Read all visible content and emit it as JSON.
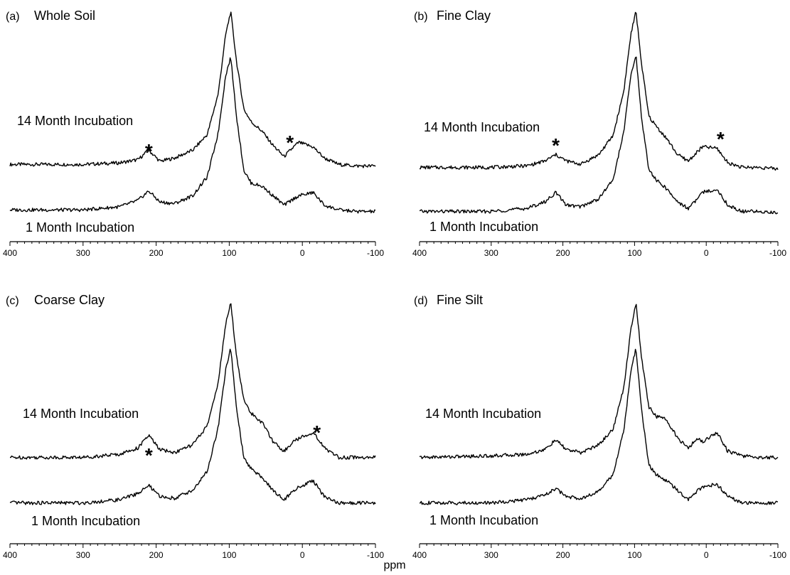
{
  "figure": {
    "xlabel": "ppm"
  },
  "chart_data": [
    {
      "type": "line",
      "panel": "(a)",
      "title": "Whole Soil",
      "xlabel": "ppm",
      "xlim": [
        400,
        -100
      ],
      "x_reversed": true,
      "xticks": [
        400,
        300,
        200,
        100,
        0,
        -100
      ],
      "tick_labels": [
        "400",
        "300",
        "200",
        "100",
        "0",
        "-100"
      ],
      "series": [
        {
          "name": "14 Month Incubation",
          "x": [
            400,
            300,
            250,
            225,
            210,
            195,
            175,
            150,
            130,
            115,
            105,
            98,
            90,
            80,
            70,
            55,
            40,
            25,
            12,
            5,
            -15,
            -30,
            -50,
            -75,
            -100
          ],
          "y": [
            0.03,
            0.03,
            0.04,
            0.06,
            0.12,
            0.05,
            0.07,
            0.12,
            0.22,
            0.48,
            0.85,
            1.0,
            0.68,
            0.38,
            0.3,
            0.24,
            0.15,
            0.08,
            0.14,
            0.17,
            0.14,
            0.07,
            0.03,
            0.02,
            0.02
          ]
        },
        {
          "name": "1 Month Incubation",
          "x": [
            400,
            300,
            250,
            225,
            210,
            195,
            175,
            150,
            130,
            115,
            105,
            98,
            90,
            80,
            70,
            55,
            40,
            25,
            12,
            5,
            -15,
            -30,
            -50,
            -75,
            -100
          ],
          "y": [
            0.03,
            0.03,
            0.05,
            0.09,
            0.15,
            0.08,
            0.07,
            0.12,
            0.24,
            0.52,
            0.88,
            1.0,
            0.62,
            0.28,
            0.2,
            0.18,
            0.12,
            0.06,
            0.1,
            0.12,
            0.14,
            0.06,
            0.03,
            0.02,
            0.02
          ]
        }
      ],
      "annotations": [
        "*",
        "*"
      ]
    },
    {
      "type": "line",
      "panel": "(b)",
      "title": "Fine Clay",
      "xlabel": "ppm",
      "xlim": [
        400,
        -100
      ],
      "x_reversed": true,
      "xticks": [
        400,
        300,
        200,
        100,
        0,
        -100
      ],
      "tick_labels": [
        "400",
        "300",
        "200",
        "100",
        "0",
        "-100"
      ],
      "series": [
        {
          "name": "14 Month Incubation",
          "x": [
            400,
            300,
            250,
            225,
            210,
            195,
            175,
            150,
            130,
            115,
            105,
            98,
            90,
            80,
            70,
            55,
            40,
            25,
            12,
            5,
            -15,
            -30,
            -50,
            -75,
            -100
          ],
          "y": [
            0.02,
            0.02,
            0.03,
            0.06,
            0.1,
            0.06,
            0.04,
            0.1,
            0.22,
            0.5,
            0.86,
            1.0,
            0.66,
            0.34,
            0.28,
            0.2,
            0.1,
            0.06,
            0.12,
            0.15,
            0.14,
            0.05,
            0.02,
            0.02,
            0.01
          ]
        },
        {
          "name": "1 Month Incubation",
          "x": [
            400,
            300,
            250,
            225,
            210,
            195,
            175,
            150,
            130,
            115,
            105,
            98,
            90,
            80,
            70,
            55,
            40,
            25,
            12,
            5,
            -15,
            -30,
            -50,
            -75,
            -100
          ],
          "y": [
            0.02,
            0.02,
            0.04,
            0.08,
            0.14,
            0.06,
            0.05,
            0.1,
            0.22,
            0.52,
            0.88,
            1.0,
            0.6,
            0.28,
            0.22,
            0.16,
            0.08,
            0.04,
            0.1,
            0.14,
            0.16,
            0.06,
            0.02,
            0.02,
            0.01
          ]
        }
      ],
      "annotations": [
        "*",
        "*"
      ]
    },
    {
      "type": "line",
      "panel": "(c)",
      "title": "Coarse Clay",
      "xlabel": "ppm",
      "xlim": [
        400,
        -100
      ],
      "x_reversed": true,
      "xticks": [
        400,
        300,
        200,
        100,
        0,
        -100
      ],
      "tick_labels": [
        "400",
        "300",
        "200",
        "100",
        "0",
        "-100"
      ],
      "series": [
        {
          "name": "14 Month Incubation",
          "x": [
            400,
            300,
            250,
            225,
            210,
            195,
            175,
            150,
            130,
            115,
            105,
            98,
            90,
            80,
            70,
            55,
            40,
            25,
            12,
            5,
            -15,
            -30,
            -50,
            -75,
            -100
          ],
          "y": [
            0.02,
            0.02,
            0.04,
            0.08,
            0.16,
            0.07,
            0.05,
            0.1,
            0.22,
            0.5,
            0.86,
            1.0,
            0.66,
            0.38,
            0.3,
            0.24,
            0.12,
            0.06,
            0.12,
            0.14,
            0.18,
            0.08,
            0.02,
            0.02,
            0.02
          ]
        },
        {
          "name": "1 Month Incubation",
          "x": [
            400,
            300,
            250,
            225,
            210,
            195,
            175,
            150,
            130,
            115,
            105,
            98,
            90,
            80,
            70,
            55,
            40,
            25,
            12,
            5,
            -15,
            -30,
            -50,
            -75,
            -100
          ],
          "y": [
            0.02,
            0.02,
            0.04,
            0.08,
            0.13,
            0.06,
            0.05,
            0.1,
            0.22,
            0.5,
            0.86,
            1.0,
            0.62,
            0.3,
            0.24,
            0.18,
            0.1,
            0.04,
            0.1,
            0.12,
            0.16,
            0.06,
            0.02,
            0.02,
            0.02
          ]
        }
      ],
      "annotations": [
        "*",
        "*"
      ]
    },
    {
      "type": "line",
      "panel": "(d)",
      "title": "Fine Silt",
      "xlabel": "ppm",
      "xlim": [
        400,
        -100
      ],
      "x_reversed": true,
      "xticks": [
        400,
        300,
        200,
        100,
        0,
        -100
      ],
      "tick_labels": [
        "400",
        "300",
        "200",
        "100",
        "0",
        "-100"
      ],
      "series": [
        {
          "name": "14 Month Incubation",
          "x": [
            400,
            300,
            250,
            225,
            210,
            195,
            175,
            150,
            130,
            115,
            105,
            98,
            90,
            80,
            70,
            55,
            40,
            25,
            12,
            5,
            -15,
            -30,
            -50,
            -75,
            -100
          ],
          "y": [
            0.02,
            0.03,
            0.04,
            0.07,
            0.13,
            0.07,
            0.05,
            0.1,
            0.2,
            0.46,
            0.84,
            1.0,
            0.64,
            0.34,
            0.28,
            0.26,
            0.14,
            0.08,
            0.14,
            0.12,
            0.18,
            0.06,
            0.03,
            0.02,
            0.02
          ]
        },
        {
          "name": "1 Month Incubation",
          "x": [
            400,
            300,
            250,
            225,
            210,
            195,
            175,
            150,
            130,
            115,
            105,
            98,
            90,
            80,
            70,
            55,
            40,
            25,
            12,
            5,
            -15,
            -30,
            -50,
            -75,
            -100
          ],
          "y": [
            0.02,
            0.02,
            0.04,
            0.07,
            0.11,
            0.06,
            0.05,
            0.09,
            0.2,
            0.48,
            0.86,
            1.0,
            0.6,
            0.26,
            0.2,
            0.16,
            0.1,
            0.04,
            0.1,
            0.12,
            0.14,
            0.06,
            0.02,
            0.02,
            0.02
          ]
        }
      ],
      "annotations": []
    }
  ]
}
